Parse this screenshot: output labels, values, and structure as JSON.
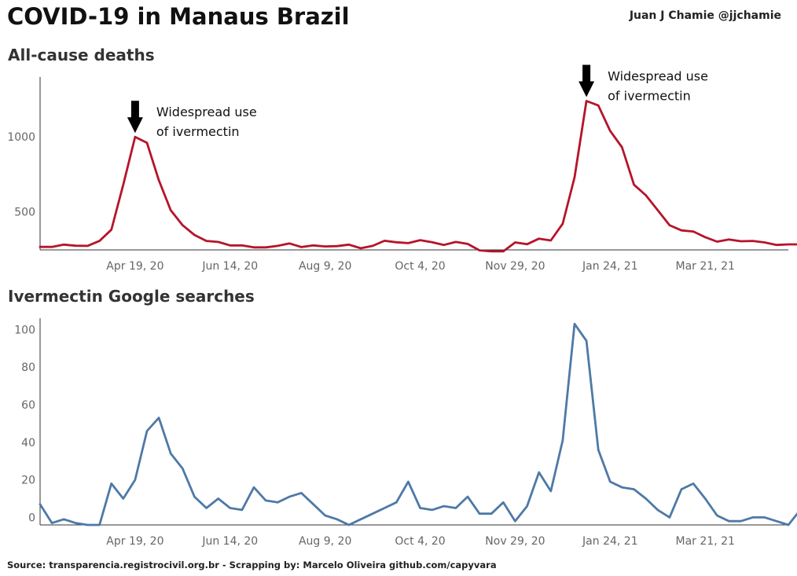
{
  "header": {
    "title": "COVID-19 in Manaus Brazil",
    "author": "Juan J Chamie  @jjchamie"
  },
  "footer": {
    "source": "Source: transparencia.registrocivil.org.br  -  Scrapping by: Marcelo Oliveira github.com/capyvara"
  },
  "colors": {
    "deaths": "#b5142b",
    "searches": "#4e79a7"
  },
  "chart_data": [
    {
      "type": "line",
      "title": "All-cause deaths",
      "x_tick_labels": [
        "Apr 19, 20",
        "Jun 14, 20",
        "Aug 9, 20",
        "Oct 4, 20",
        "Nov 29, 20",
        "Jan 24, 21",
        "Mar 21, 21"
      ],
      "x_ticks_week_index": [
        8,
        16,
        24,
        32,
        40,
        48,
        56
      ],
      "y_ticks": [
        500,
        1000
      ],
      "ylim": [
        245,
        1400
      ],
      "xlim": [
        0,
        63
      ],
      "grid": false,
      "series": [
        {
          "color": "#b5142b",
          "values": [
            265,
            265,
            280,
            273,
            272,
            305,
            380,
            680,
            1000,
            960,
            710,
            510,
            410,
            345,
            305,
            298,
            275,
            275,
            262,
            262,
            272,
            288,
            264,
            275,
            268,
            270,
            280,
            256,
            272,
            306,
            296,
            290,
            310,
            296,
            278,
            298,
            285,
            242,
            235,
            235,
            295,
            283,
            320,
            308,
            420,
            730,
            1240,
            1210,
            1040,
            930,
            680,
            610,
            510,
            410,
            375,
            368,
            330,
            300,
            315,
            303,
            305,
            295,
            278,
            282,
            282
          ]
        }
      ],
      "annotations": [
        {
          "x": 8,
          "y": 1000,
          "text_lines": [
            "Widespread use",
            "of ivermectin"
          ]
        },
        {
          "x": 46,
          "y": 1240,
          "text_lines": [
            "Widespread use",
            "of ivermectin"
          ]
        }
      ]
    },
    {
      "type": "line",
      "title": "Ivermectin Google searches",
      "x_tick_labels": [
        "Apr 19, 20",
        "Jun 14, 20",
        "Aug 9, 20",
        "Oct 4, 20",
        "Nov 29, 20",
        "Jan 24, 21",
        "Mar 21, 21"
      ],
      "x_ticks_week_index": [
        8,
        16,
        24,
        32,
        40,
        48,
        56
      ],
      "y_ticks": [
        0,
        20,
        40,
        60,
        80,
        100
      ],
      "ylim": [
        -4,
        106
      ],
      "xlim": [
        0,
        63
      ],
      "grid": false,
      "series": [
        {
          "color": "#4e79a7",
          "values": [
            7,
            -3,
            -1,
            -3,
            -4,
            -4,
            18,
            10,
            20,
            46,
            53,
            34,
            26,
            11,
            5,
            10,
            5,
            4,
            16,
            9,
            8,
            11,
            13,
            7,
            1,
            -1,
            -4,
            -1,
            2,
            5,
            8,
            19,
            5,
            4,
            6,
            5,
            11,
            2,
            2,
            8,
            -2,
            6,
            24,
            14,
            41,
            103,
            94,
            36,
            19,
            16,
            15,
            10,
            4,
            0,
            15,
            18,
            10,
            1,
            -2,
            -2,
            0,
            0,
            -2,
            -4,
            4
          ]
        }
      ]
    }
  ]
}
